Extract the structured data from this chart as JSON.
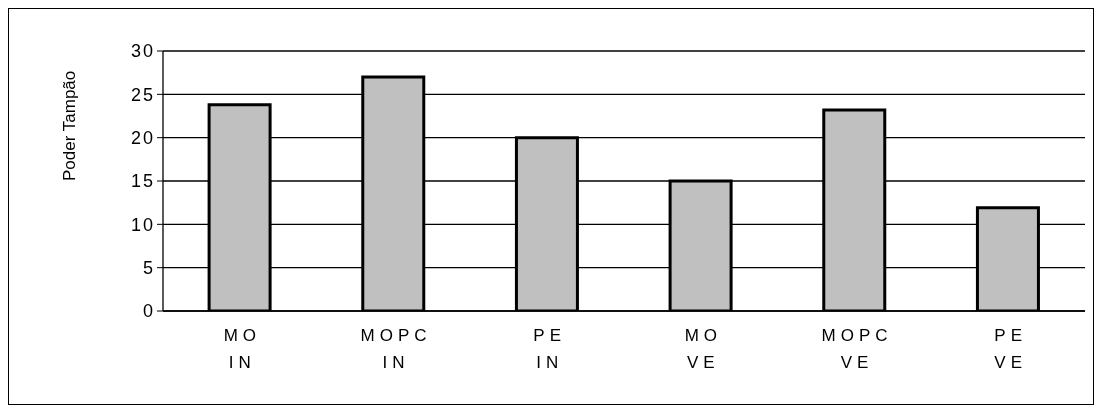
{
  "chart_data": {
    "type": "bar",
    "ylabel": "Poder Tampão",
    "categories": [
      "MO\nIN",
      "MOPC\nIN",
      "PE\nIN",
      "MO\nVE",
      "MOPC\nVE",
      "PE\nVE"
    ],
    "values": [
      23.8,
      27,
      20,
      15,
      23.2,
      11.9
    ],
    "color": "#c0c0c0",
    "ylim": [
      0,
      30
    ],
    "yticks": [
      0,
      5,
      10,
      15,
      20,
      25,
      30
    ],
    "grid": "y"
  }
}
